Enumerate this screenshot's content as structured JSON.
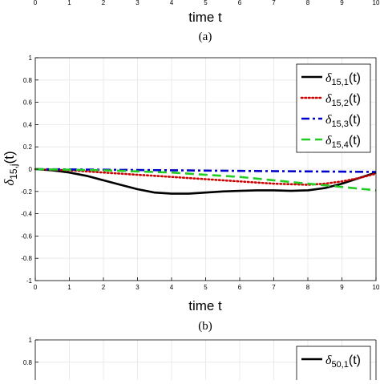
{
  "top_panel": {
    "x_ticks": [
      "0",
      "1",
      "2",
      "3",
      "4",
      "5",
      "6",
      "7",
      "8",
      "9",
      "10"
    ],
    "xlabel": "time t",
    "caption": "(a)"
  },
  "chart_data": [
    {
      "type": "line",
      "panel_caption": "(b)",
      "xlabel": "time t",
      "ylabel": "δ15,j(t)",
      "ylabel_parts": {
        "base": "δ",
        "sub": "15,j",
        "tail": "(t)"
      },
      "xlim": [
        0,
        10
      ],
      "ylim": [
        -1,
        1
      ],
      "x_ticks": [
        0,
        1,
        2,
        3,
        4,
        5,
        6,
        7,
        8,
        9,
        10
      ],
      "y_ticks": [
        1,
        0.8,
        0.6,
        0.4,
        0.2,
        0,
        -0.2,
        -0.4,
        -0.6,
        -0.8,
        -1
      ],
      "y_tick_labels": [
        "1",
        "0.8",
        "0.6",
        "0.4",
        "0.2",
        "0",
        "-0.2",
        "-0.4",
        "-0.6",
        "-0.8",
        "-1"
      ],
      "grid": true,
      "legend_position": "top-right",
      "series": [
        {
          "name": "δ15,1(t)",
          "sub": "15,1",
          "color": "#000000",
          "dash": "solid",
          "x": [
            0,
            0.5,
            1,
            1.5,
            2,
            2.5,
            3,
            3.5,
            4,
            4.5,
            5,
            5.5,
            6,
            6.5,
            7,
            7.5,
            8,
            8.5,
            9,
            9.5,
            10
          ],
          "y": [
            0,
            -0.01,
            -0.03,
            -0.06,
            -0.1,
            -0.14,
            -0.18,
            -0.21,
            -0.22,
            -0.22,
            -0.21,
            -0.2,
            -0.195,
            -0.19,
            -0.19,
            -0.195,
            -0.19,
            -0.17,
            -0.13,
            -0.08,
            -0.03
          ]
        },
        {
          "name": "δ15,2(t)",
          "sub": "15,2",
          "color": "#cc0000",
          "dash": "dotted",
          "x": [
            0,
            0.5,
            1,
            1.5,
            2,
            2.5,
            3,
            3.5,
            4,
            4.5,
            5,
            5.5,
            6,
            6.5,
            7,
            7.5,
            8,
            8.5,
            9,
            9.5,
            10
          ],
          "y": [
            0,
            -0.005,
            -0.01,
            -0.02,
            -0.03,
            -0.04,
            -0.05,
            -0.06,
            -0.07,
            -0.08,
            -0.09,
            -0.1,
            -0.11,
            -0.12,
            -0.13,
            -0.135,
            -0.14,
            -0.13,
            -0.11,
            -0.08,
            -0.04
          ]
        },
        {
          "name": "δ15,3(t)",
          "sub": "15,3",
          "color": "#0000cc",
          "dash": "dashdot",
          "x": [
            0,
            1,
            2,
            3,
            4,
            5,
            6,
            7,
            8,
            9,
            10
          ],
          "y": [
            0,
            -0.002,
            -0.005,
            -0.008,
            -0.01,
            -0.013,
            -0.016,
            -0.018,
            -0.02,
            -0.022,
            -0.025
          ]
        },
        {
          "name": "δ15,4(t)",
          "sub": "15,4",
          "color": "#22cc22",
          "dash": "dashed",
          "x": [
            0,
            1,
            2,
            3,
            4,
            5,
            6,
            7,
            8,
            9,
            10
          ],
          "y": [
            0,
            -0.005,
            -0.01,
            -0.02,
            -0.03,
            -0.05,
            -0.07,
            -0.1,
            -0.13,
            -0.16,
            -0.19
          ]
        }
      ]
    },
    {
      "type": "line",
      "partial": true,
      "xlim": [
        0,
        10
      ],
      "ylim": [
        -1,
        1
      ],
      "y_ticks": [
        1,
        0.8
      ],
      "y_tick_labels": [
        "1",
        "0.8"
      ],
      "grid": true,
      "legend_position": "top-right",
      "series": [
        {
          "name": "δ50,1(t)",
          "sub": "50,1",
          "color": "#000000",
          "dash": "solid"
        }
      ]
    }
  ]
}
